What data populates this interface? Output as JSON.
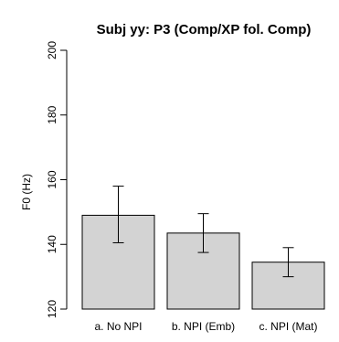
{
  "chart_data": {
    "type": "bar",
    "title": "Subj yy: P3 (Comp/XP fol. Comp)",
    "xlabel": "",
    "ylabel": "F0 (Hz)",
    "categories": [
      "a. No NPI",
      "b. NPI (Emb)",
      "c. NPI (Mat)"
    ],
    "values": [
      149,
      143.5,
      134.5
    ],
    "error_low": [
      140.5,
      137.5,
      130
    ],
    "error_high": [
      158,
      149.5,
      139
    ],
    "ylim": [
      120,
      200
    ],
    "yticks": [
      120,
      140,
      160,
      180,
      200
    ],
    "bar_fill": "#d3d3d3",
    "bar_stroke": "#000000",
    "grid": false,
    "legend": "none"
  }
}
